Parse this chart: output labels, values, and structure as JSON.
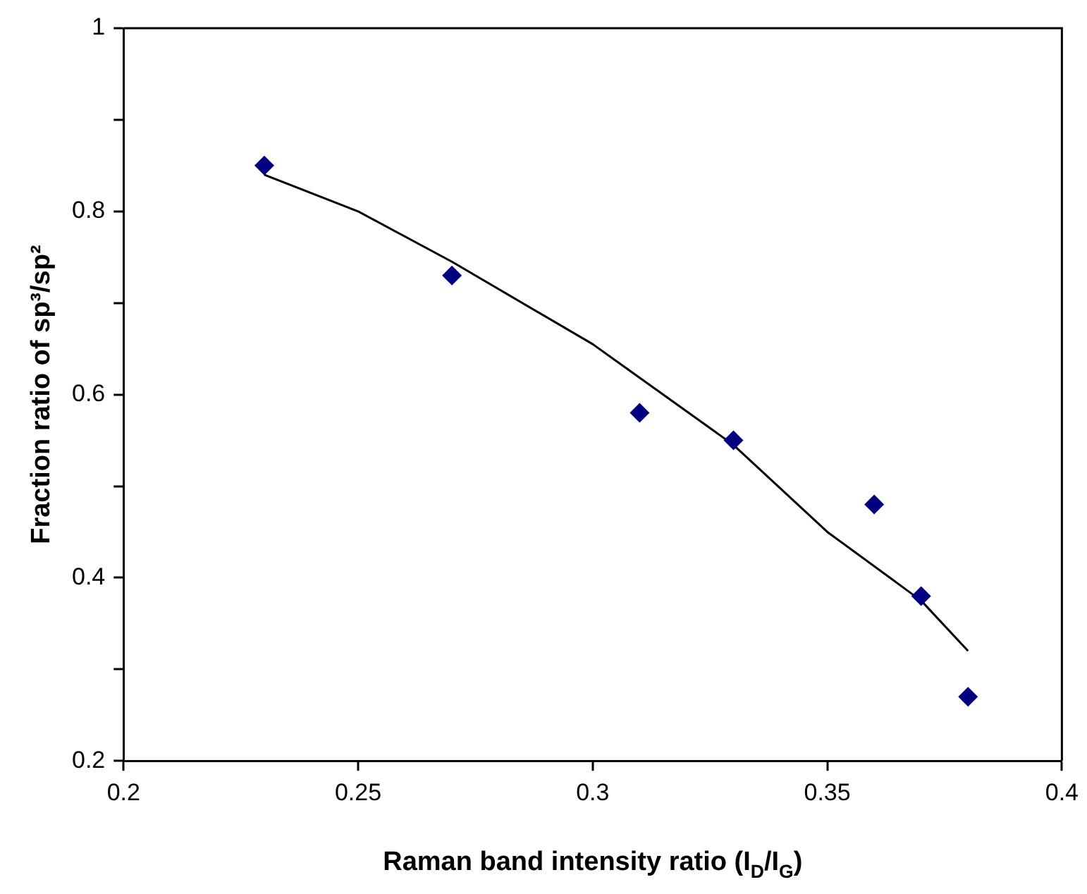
{
  "chart_data": {
    "type": "scatter",
    "xlabel": "Raman band intensity ratio (I$_{D}$/I$_{G}$)",
    "ylabel": "Fraction ratio of sp³/sp²",
    "xlim": [
      0.2,
      0.4
    ],
    "xticks": [
      0.2,
      0.25,
      0.3,
      0.35,
      0.4
    ],
    "ylim": [
      0.2,
      1
    ],
    "yticks": [
      0.2,
      {
        "value": 0.3,
        "label": null
      },
      0.4,
      {
        "value": 0.5,
        "label": null
      },
      0.6,
      {
        "value": 0.7,
        "label": null
      },
      0.8,
      {
        "value": 0.9,
        "label": null
      },
      1
    ],
    "series": [
      {
        "color": "#000080",
        "marker": "diamond",
        "x": [
          0.23,
          0.27,
          0.31,
          0.33,
          0.36,
          0.37,
          0.38
        ],
        "values": [
          0.85,
          0.73,
          0.58,
          0.55,
          0.48,
          0.38,
          0.27
        ]
      },
      {
        "type": "line",
        "color": "#000000",
        "marker": "none",
        "line_style": "solid",
        "x": [
          0.23,
          0.25,
          0.27,
          0.3,
          0.33,
          0.35,
          0.37,
          0.38
        ],
        "values": [
          0.84,
          0.8,
          0.745,
          0.655,
          0.545,
          0.45,
          0.375,
          0.32
        ]
      }
    ]
  }
}
